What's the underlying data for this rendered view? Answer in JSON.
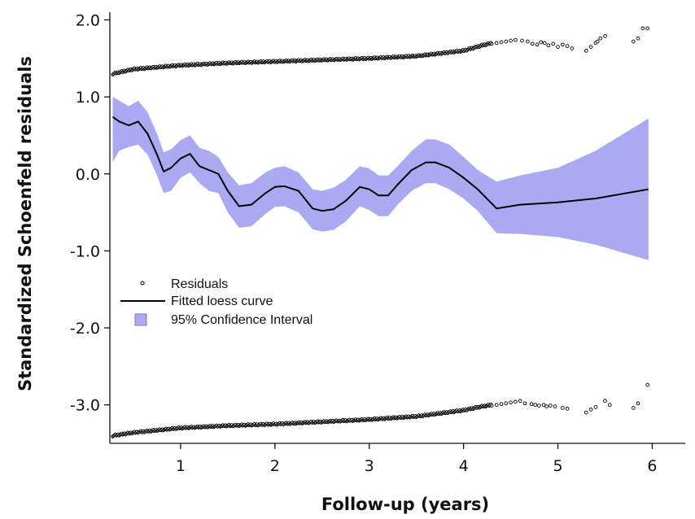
{
  "chart_data": {
    "type": "line",
    "xlabel": "Follow-up (years)",
    "ylabel": "Standardized Schoenfeld residuals",
    "xlim": [
      0.25,
      6.35
    ],
    "ylim": [
      -3.5,
      2.1
    ],
    "x_ticks": [
      1,
      2,
      3,
      4,
      5,
      6
    ],
    "y_ticks": [
      2.0,
      1.0,
      0.0,
      -1.0,
      -2.0,
      -3.0
    ],
    "y_tick_labels": [
      "2.0",
      "1.0",
      "0.0",
      "-1.0",
      "-2.0",
      "-3.0"
    ],
    "grid": false,
    "legend_placement": "lower-left",
    "legend": {
      "residuals": "Residuals",
      "loess": "Fitted loess curve",
      "ci": "95% Confidence Interval"
    },
    "colors": {
      "ci_fill": "#aaaaf2",
      "curve": "#000000",
      "points": "#000000"
    },
    "loess": {
      "x": [
        0.28,
        0.35,
        0.45,
        0.55,
        0.65,
        0.75,
        0.82,
        0.9,
        1.0,
        1.1,
        1.2,
        1.3,
        1.4,
        1.5,
        1.62,
        1.75,
        1.9,
        2.0,
        2.1,
        2.25,
        2.4,
        2.5,
        2.62,
        2.75,
        2.9,
        3.0,
        3.1,
        3.2,
        3.3,
        3.45,
        3.6,
        3.7,
        3.85,
        4.0,
        4.15,
        4.35,
        4.6,
        5.0,
        5.4,
        5.96
      ],
      "y": [
        0.74,
        0.68,
        0.63,
        0.68,
        0.52,
        0.25,
        0.03,
        0.08,
        0.2,
        0.26,
        0.1,
        0.05,
        0.0,
        -0.22,
        -0.42,
        -0.4,
        -0.25,
        -0.17,
        -0.16,
        -0.22,
        -0.45,
        -0.48,
        -0.46,
        -0.35,
        -0.17,
        -0.2,
        -0.28,
        -0.28,
        -0.14,
        0.05,
        0.15,
        0.15,
        0.08,
        -0.05,
        -0.2,
        -0.45,
        -0.4,
        -0.37,
        -0.32,
        -0.2
      ]
    },
    "ci": {
      "x": [
        0.28,
        0.35,
        0.45,
        0.55,
        0.65,
        0.75,
        0.82,
        0.9,
        1.0,
        1.1,
        1.2,
        1.3,
        1.4,
        1.5,
        1.62,
        1.75,
        1.9,
        2.0,
        2.1,
        2.25,
        2.4,
        2.5,
        2.62,
        2.75,
        2.9,
        3.0,
        3.1,
        3.2,
        3.3,
        3.45,
        3.6,
        3.7,
        3.85,
        4.0,
        4.15,
        4.35,
        4.6,
        5.0,
        5.4,
        5.96
      ],
      "upper": [
        1.0,
        0.95,
        0.88,
        0.95,
        0.8,
        0.52,
        0.28,
        0.32,
        0.44,
        0.5,
        0.34,
        0.3,
        0.22,
        0.02,
        -0.15,
        -0.12,
        0.02,
        0.08,
        0.1,
        0.02,
        -0.2,
        -0.22,
        -0.18,
        -0.08,
        0.1,
        0.07,
        -0.02,
        -0.02,
        0.1,
        0.3,
        0.45,
        0.45,
        0.38,
        0.22,
        0.05,
        -0.1,
        -0.02,
        0.08,
        0.3,
        0.72
      ],
      "lower": [
        0.15,
        0.3,
        0.35,
        0.38,
        0.25,
        -0.02,
        -0.25,
        -0.22,
        -0.05,
        0.02,
        -0.12,
        -0.22,
        -0.25,
        -0.5,
        -0.7,
        -0.68,
        -0.52,
        -0.43,
        -0.42,
        -0.5,
        -0.72,
        -0.75,
        -0.73,
        -0.62,
        -0.42,
        -0.47,
        -0.55,
        -0.55,
        -0.4,
        -0.22,
        -0.12,
        -0.12,
        -0.2,
        -0.32,
        -0.48,
        -0.77,
        -0.78,
        -0.82,
        -0.92,
        -1.12
      ]
    },
    "residuals_upper_band": {
      "x": [
        0.28,
        0.5,
        1.0,
        1.5,
        2.0,
        2.5,
        3.0,
        3.5,
        4.0,
        4.2,
        4.3
      ],
      "y": [
        1.3,
        1.36,
        1.41,
        1.44,
        1.46,
        1.48,
        1.5,
        1.53,
        1.6,
        1.67,
        1.7
      ]
    },
    "residuals_lower_band": {
      "x": [
        0.28,
        0.5,
        1.0,
        1.5,
        2.0,
        2.5,
        3.0,
        3.5,
        4.0,
        4.2,
        4.3
      ],
      "y": [
        -3.4,
        -3.36,
        -3.3,
        -3.27,
        -3.25,
        -3.22,
        -3.19,
        -3.15,
        -3.07,
        -3.02,
        -3.0
      ]
    },
    "residuals_upper_scatter": {
      "x": [
        4.35,
        4.4,
        4.45,
        4.5,
        4.55,
        4.62,
        4.68,
        4.73,
        4.78,
        4.82,
        4.86,
        4.9,
        4.95,
        5.0,
        5.05,
        5.1,
        5.15,
        5.3,
        5.35,
        5.4,
        5.42,
        5.45,
        5.5,
        5.8,
        5.85,
        5.9,
        5.95
      ],
      "y": [
        1.7,
        1.71,
        1.72,
        1.73,
        1.74,
        1.73,
        1.72,
        1.69,
        1.68,
        1.71,
        1.7,
        1.67,
        1.69,
        1.65,
        1.68,
        1.66,
        1.63,
        1.6,
        1.65,
        1.7,
        1.72,
        1.76,
        1.79,
        1.72,
        1.76,
        1.89,
        1.89
      ]
    },
    "residuals_lower_scatter": {
      "x": [
        4.35,
        4.4,
        4.45,
        4.5,
        4.55,
        4.6,
        4.65,
        4.72,
        4.76,
        4.8,
        4.85,
        4.88,
        4.92,
        4.97,
        5.05,
        5.1,
        5.3,
        5.35,
        5.4,
        5.5,
        5.55,
        5.8,
        5.85,
        5.95
      ],
      "y": [
        -3.0,
        -2.99,
        -2.98,
        -2.97,
        -2.96,
        -2.95,
        -2.98,
        -2.99,
        -3.0,
        -3.01,
        -3.0,
        -3.02,
        -3.01,
        -3.02,
        -3.04,
        -3.05,
        -3.1,
        -3.06,
        -3.03,
        -2.95,
        -3.0,
        -3.04,
        -2.98,
        -2.74
      ]
    }
  }
}
